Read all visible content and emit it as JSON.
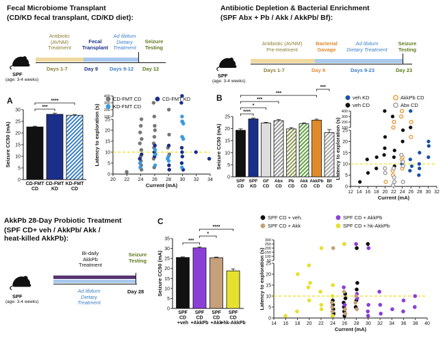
{
  "top_left": {
    "title": "Fecal Microbiome Transplant",
    "subtitle": "(CD/KD fecal transplant, CD/KD diet):",
    "timeline": {
      "segments": [
        {
          "label": "Antibiotic\n(AVNM)\nTreatment",
          "days": "Days 1-7"
        },
        {
          "label": "Fecal\nTransplant",
          "days": "Day 9"
        },
        {
          "label": "Ad libitum\nDietary\nTreatment",
          "days": "Days 9-12"
        },
        {
          "label": "Seizure\nTesting",
          "days": "Day 12"
        }
      ]
    },
    "mouse": {
      "label": "SPF",
      "age": "(age: 3-4 weeks)"
    }
  },
  "top_right": {
    "title": "Antibiotic Depletion & Bacterial Enrichment",
    "subtitle": "(SPF Abx + Pb / Akk / AkkPb/ Bf):",
    "timeline": {
      "segments": [
        {
          "label": "Antibiotic (AVNM)\nPre-treatment",
          "days": "Days 1-7"
        },
        {
          "label": "Bacterial\nGavage",
          "days": "Day 9"
        },
        {
          "label": "Ad libitum\nDietary Treatment",
          "days": "Days 9-23"
        },
        {
          "label": "Seizure\nTesting",
          "days": "Day 23"
        }
      ]
    },
    "mouse": {
      "label": "SPF",
      "age": "(age: 3-4 weeks)"
    }
  },
  "bottom_left": {
    "title": "AkkPb 28-Day Probiotic Treatment",
    "subtitle": "(SPF CD+ veh / AkkPb/ Akk /\nheat-killed AkkPb):",
    "timeline": {
      "segments": [
        {
          "label": "Bi-daily\nAkkPb\nTreatment"
        },
        {
          "label": "Seizure\nTesting"
        },
        {
          "label": "Ad libitum\nDietary\nTreatment"
        },
        {
          "label": "Day 28"
        }
      ]
    },
    "mouse": {
      "label": "SPF",
      "age": "(age: 3-4 weeks)"
    }
  },
  "panel_letters": [
    "A",
    "B",
    "C"
  ],
  "colors": {
    "title_green": "#5e7a1a",
    "olive": "#8c7d33",
    "blue_dark": "#1a2f8a",
    "blue_light": "#3a7fc9",
    "orange": "#e08a2a",
    "purple": "#8b3fd6",
    "tan": "#c5a07a",
    "yellow": "#e6e12e",
    "gold": "#e8c874",
    "sky": "#a8c8ee"
  },
  "chart_data": [
    {
      "id": "A-bar",
      "type": "bar",
      "categories": [
        "CD-FMT\nCD",
        "CD-FMT\nKD",
        "KD-FMT\nCD"
      ],
      "values": [
        22.6,
        28.0,
        27.6
      ],
      "errors": [
        0.3,
        0.5,
        0.3
      ],
      "ylabel": "Seizure CC50 (mA)",
      "ylim": [
        0,
        30
      ],
      "yticks": [
        0,
        5,
        10,
        15,
        20,
        25,
        30
      ],
      "colors": [
        "#111111",
        "#1a2f8a",
        "#3a7fc9"
      ],
      "hatch": [
        false,
        false,
        true
      ],
      "significance": [
        {
          "from": 0,
          "to": 1,
          "label": "***"
        },
        {
          "from": 0,
          "to": 2,
          "label": "****"
        }
      ]
    },
    {
      "id": "A-scatter",
      "type": "scatter",
      "xlabel": "Current (mA)",
      "ylabel": "Latency to exploration (s)",
      "xticks": [
        20,
        22,
        24,
        26,
        28,
        30,
        32,
        34
      ],
      "xlim": [
        20,
        34
      ],
      "yticks_low": [
        0,
        5,
        10,
        15,
        20,
        25
      ],
      "yticks_high": [
        100,
        200,
        300,
        400
      ],
      "threshold": 10,
      "series": [
        {
          "name": "CD-FMT CD",
          "color": "#777777",
          "points": [
            [
              24,
              25
            ],
            [
              24,
              22
            ],
            [
              24,
              19
            ],
            [
              24,
              16
            ],
            [
              24,
              14
            ],
            [
              24,
              11
            ],
            [
              24,
              8
            ],
            [
              24,
              6
            ],
            [
              24,
              4
            ],
            [
              26,
              300
            ],
            [
              26,
              100
            ],
            [
              26,
              22
            ],
            [
              26,
              20
            ],
            [
              26,
              17
            ],
            [
              26,
              14
            ],
            [
              26,
              12
            ],
            [
              26,
              9
            ],
            [
              26,
              7
            ],
            [
              28,
              200
            ],
            [
              28,
              18
            ],
            [
              28,
              12
            ],
            [
              28,
              9
            ],
            [
              22,
              1
            ],
            [
              26,
              3
            ],
            [
              24,
              2
            ]
          ]
        },
        {
          "name": "CD-FMT KD",
          "color": "#1a2f8a",
          "points": [
            [
              24,
              7
            ],
            [
              24,
              9
            ],
            [
              24,
              5
            ],
            [
              26,
              13
            ],
            [
              26,
              10
            ],
            [
              26,
              8
            ],
            [
              28,
              13
            ],
            [
              28,
              4
            ],
            [
              28,
              2
            ],
            [
              30,
              400
            ],
            [
              30,
              300
            ],
            [
              30,
              24
            ],
            [
              30,
              12
            ],
            [
              30,
              10
            ],
            [
              30,
              8
            ],
            [
              30,
              5
            ],
            [
              30,
              2
            ],
            [
              32,
              10
            ],
            [
              34,
              7
            ]
          ]
        },
        {
          "name": "KD-FMT CD",
          "color": "#3a9be0",
          "points": [
            [
              24,
              5
            ],
            [
              24,
              3
            ],
            [
              26,
              11
            ],
            [
              26,
              9
            ],
            [
              26,
              4
            ],
            [
              28,
              8
            ],
            [
              28,
              7
            ],
            [
              28,
              6
            ],
            [
              30,
              100
            ],
            [
              30,
              24
            ],
            [
              30,
              23
            ],
            [
              30,
              17
            ],
            [
              30,
              16
            ],
            [
              30,
              3
            ]
          ]
        }
      ]
    },
    {
      "id": "B-bar",
      "type": "bar",
      "categories": [
        "SPF\nCD",
        "SPF\nKD",
        "GF\nCD",
        "Abx\nCD",
        "Pb\nCD",
        "Akk\nCD",
        "AkkPb\nCD",
        "Bf\nCD"
      ],
      "values": [
        19.3,
        24.0,
        22.3,
        23.3,
        19.9,
        22.0,
        23.5,
        18.3
      ],
      "errors": [
        0.6,
        0.4,
        0.3,
        0.4,
        0.5,
        0.4,
        0.4,
        1.3
      ],
      "ylabel": "Seizure CC50 (mA)",
      "ylim": [
        0,
        25
      ],
      "yticks": [
        0,
        5,
        10,
        15,
        20,
        25
      ],
      "colors": [
        "#111111",
        "#1a2f8a",
        "#dddddd",
        "#999999",
        "#8c9a55",
        "#5fa340",
        "#e08a2a",
        "#aaaaaa"
      ],
      "hatch": [
        false,
        false,
        false,
        true,
        true,
        true,
        false,
        true
      ],
      "significance": [
        {
          "from": 0,
          "to": 1,
          "label": "****"
        },
        {
          "from": 0,
          "to": 2,
          "label": "*"
        },
        {
          "from": 0,
          "to": 3,
          "label": "***"
        },
        {
          "from": 0,
          "to": 6,
          "label": "***"
        },
        {
          "from": 6,
          "to": 7,
          "label": "***"
        }
      ]
    },
    {
      "id": "B-scatter",
      "type": "scatter",
      "xlabel": "Current (mA)",
      "ylabel": "Latency to exploration (s)",
      "xticks": [
        12,
        14,
        16,
        18,
        20,
        22,
        24,
        26,
        28,
        30,
        32
      ],
      "xlim": [
        12,
        32
      ],
      "yticks_low": [
        0,
        5,
        10,
        15,
        20,
        25
      ],
      "yticks_high": [
        100,
        200,
        300,
        400
      ],
      "threshold": 10,
      "series": [
        {
          "name": "veh KD",
          "color": "#1a4ea8",
          "marker": "filled",
          "points": [
            [
              24,
              10
            ],
            [
              26,
              12
            ],
            [
              26,
              9
            ],
            [
              26,
              7
            ],
            [
              28,
              15
            ],
            [
              28,
              10
            ],
            [
              28,
              8
            ],
            [
              30,
              20
            ],
            [
              30,
              18
            ],
            [
              30,
              13
            ],
            [
              28,
              5
            ],
            [
              26,
              400
            ]
          ]
        },
        {
          "name": "AkkPb CD",
          "color": "#e89a35",
          "marker": "open",
          "points": [
            [
              22,
              5
            ],
            [
              20,
              2
            ],
            [
              24,
              12
            ],
            [
              22,
              200
            ],
            [
              22,
              100
            ],
            [
              24,
              400
            ],
            [
              24,
              300
            ],
            [
              26,
              200
            ],
            [
              24,
              13
            ],
            [
              24,
              8
            ],
            [
              26,
              22
            ],
            [
              22,
              7
            ]
          ]
        },
        {
          "name": "veh CD",
          "color": "#111111",
          "marker": "filled",
          "points": [
            [
              14,
              2
            ],
            [
              16,
              6
            ],
            [
              16,
              12
            ],
            [
              18,
              13
            ],
            [
              18,
              8
            ],
            [
              20,
              14
            ],
            [
              20,
              17
            ],
            [
              22,
              16
            ],
            [
              20,
              22
            ],
            [
              22,
              9
            ],
            [
              22,
              13
            ],
            [
              24,
              20
            ],
            [
              20,
              400
            ],
            [
              22,
              300
            ],
            [
              26,
              100
            ],
            [
              24,
              25
            ]
          ]
        },
        {
          "name": "Abx CD",
          "color": "#999999",
          "marker": "open",
          "points": [
            [
              20,
              8
            ],
            [
              20,
              6
            ],
            [
              22,
              4
            ],
            [
              22,
              8
            ],
            [
              22,
              2
            ],
            [
              24,
              14
            ],
            [
              24,
              11
            ],
            [
              24,
              9
            ],
            [
              22,
              0.5
            ],
            [
              24,
              2
            ]
          ]
        }
      ]
    },
    {
      "id": "C-bar",
      "type": "bar",
      "categories": [
        "SPF\nCD\n+veh",
        "SPF\nCD\n+AkkPb",
        "SPF\nCD\n+Akk",
        "SPF\nCD\n+hk-AkkPb"
      ],
      "values": [
        25.5,
        30.3,
        25.4,
        18.8
      ],
      "errors": [
        0.3,
        0.5,
        0.3,
        1.0
      ],
      "ylabel": "Seizure CC50 (mA)",
      "ylim": [
        0,
        35
      ],
      "yticks": [
        0,
        5,
        10,
        15,
        20,
        25,
        30,
        35
      ],
      "colors": [
        "#111111",
        "#8b3fd6",
        "#c5a07a",
        "#e6e12e"
      ],
      "hatch": [
        false,
        false,
        false,
        false
      ],
      "significance": [
        {
          "from": 0,
          "to": 1,
          "label": "***"
        },
        {
          "from": 1,
          "to": 2,
          "label": "*"
        },
        {
          "from": 1,
          "to": 3,
          "label": "****"
        }
      ]
    },
    {
      "id": "C-scatter",
      "type": "scatter",
      "xlabel": "Current (mA)",
      "ylabel": "Latency to exploration (s)",
      "xticks": [
        14,
        16,
        18,
        20,
        22,
        24,
        26,
        28,
        30,
        32,
        34,
        36,
        38,
        40
      ],
      "xlim": [
        14,
        40
      ],
      "yticks_low": [
        0,
        5,
        10,
        15,
        20,
        25
      ],
      "yticks_high": [
        50,
        100,
        150,
        200,
        250,
        300
      ],
      "threshold": 10,
      "series": [
        {
          "name": "SPF CD + veh.",
          "color": "#111111",
          "points": [
            [
              24,
              2
            ],
            [
              24,
              4
            ],
            [
              24,
              6
            ],
            [
              24,
              8
            ],
            [
              26,
              3
            ],
            [
              26,
              5
            ],
            [
              26,
              7
            ],
            [
              26,
              9
            ],
            [
              26,
              11
            ],
            [
              28,
              5
            ],
            [
              28,
              8
            ],
            [
              28,
              13
            ],
            [
              28,
              16
            ],
            [
              30,
              250
            ],
            [
              28,
              200
            ],
            [
              24,
              1
            ],
            [
              26,
              1
            ]
          ]
        },
        {
          "name": "SPF CD + AkkPb",
          "color": "#8b3fd6",
          "points": [
            [
              26,
              14
            ],
            [
              28,
              11
            ],
            [
              28,
              9
            ],
            [
              30,
              6
            ],
            [
              30,
              3
            ],
            [
              30,
              1
            ],
            [
              32,
              12
            ],
            [
              32,
              6
            ],
            [
              32,
              2
            ],
            [
              34,
              4
            ],
            [
              36,
              8
            ],
            [
              36,
              3
            ],
            [
              38,
              10
            ],
            [
              38,
              5
            ],
            [
              28,
              250
            ],
            [
              30,
              200
            ],
            [
              26,
              6
            ]
          ]
        },
        {
          "name": "SPF CD + Akk",
          "color": "#c5a07a",
          "points": [
            [
              24,
              3
            ],
            [
              24,
              5
            ],
            [
              24,
              7
            ],
            [
              26,
              2
            ],
            [
              26,
              4
            ],
            [
              26,
              12
            ],
            [
              28,
              4
            ],
            [
              28,
              7
            ],
            [
              24,
              200
            ],
            [
              26,
              250
            ],
            [
              28,
              10
            ]
          ]
        },
        {
          "name": "SPF CD + hk-AkkPb",
          "color": "#e6e12e",
          "points": [
            [
              16,
              1
            ],
            [
              18,
              3
            ],
            [
              18,
              20
            ],
            [
              20,
              16
            ],
            [
              20,
              14
            ],
            [
              20,
              24
            ],
            [
              20,
              8
            ],
            [
              22,
              6
            ],
            [
              22,
              12
            ],
            [
              22,
              4
            ],
            [
              22,
              200
            ],
            [
              24,
              15
            ],
            [
              24,
              10
            ],
            [
              26,
              250
            ],
            [
              24,
              1
            ]
          ]
        }
      ]
    }
  ]
}
